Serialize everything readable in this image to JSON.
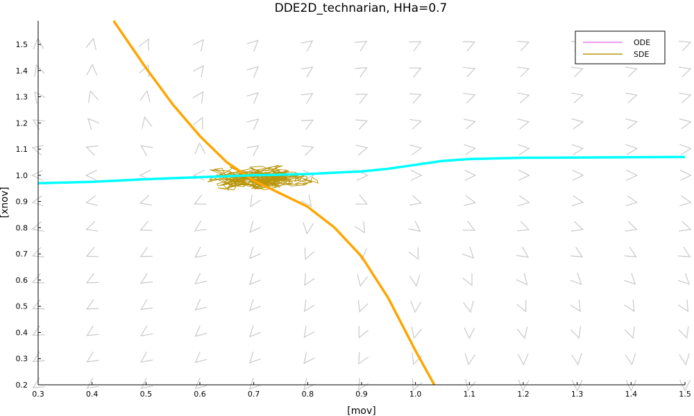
{
  "chart_data": {
    "type": "line",
    "title": "DDE2D_technarian, HHa=0.7",
    "xlabel": "[mov]",
    "ylabel": "[xnov]",
    "xlim": [
      0.3,
      1.5
    ],
    "ylim": [
      0.2,
      1.59
    ],
    "x_ticks": [
      "0.3",
      "0.4",
      "0.5",
      "0.6",
      "0.7",
      "0.8",
      "0.9",
      "1.0",
      "1.1",
      "1.2",
      "1.3",
      "1.4",
      "1.5"
    ],
    "y_ticks": [
      "0.2",
      "0.3",
      "0.4",
      "0.5",
      "0.6",
      "0.7",
      "0.8",
      "0.9",
      "1.0",
      "1.1",
      "1.2",
      "1.3",
      "1.4",
      "1.5"
    ],
    "grid": false,
    "legend_position": "top-right",
    "legend": [
      "ODE",
      "SDE"
    ],
    "colors": {
      "ode": "#e87be8",
      "sde": "#b8960c",
      "nullcline_x": "#ffa500",
      "nullcline_y": "#00ffff",
      "vector_field": "#c8c8c8"
    },
    "series": [
      {
        "name": "ODE",
        "values": []
      },
      {
        "name": "SDE",
        "center": [
          0.7,
          0.99
        ],
        "spread": [
          0.09,
          0.05
        ],
        "x_range": [
          0.61,
          0.93
        ],
        "y_range": [
          0.88,
          1.07
        ]
      }
    ],
    "nullclines": [
      {
        "points": [
          [
            0.44,
            1.59
          ],
          [
            0.5,
            1.41
          ],
          [
            0.55,
            1.27
          ],
          [
            0.6,
            1.15
          ],
          [
            0.65,
            1.05
          ],
          [
            0.7,
            0.98
          ],
          [
            0.75,
            0.93
          ],
          [
            0.8,
            0.88
          ],
          [
            0.85,
            0.8
          ],
          [
            0.9,
            0.69
          ],
          [
            0.95,
            0.53
          ],
          [
            1.0,
            0.33
          ],
          [
            1.035,
            0.2
          ]
        ]
      },
      {
        "points": [
          [
            0.3,
            0.97
          ],
          [
            0.4,
            0.975
          ],
          [
            0.5,
            0.985
          ],
          [
            0.6,
            0.993
          ],
          [
            0.7,
            1.0
          ],
          [
            0.8,
            1.005
          ],
          [
            0.9,
            1.015
          ],
          [
            0.95,
            1.025
          ],
          [
            1.0,
            1.04
          ],
          [
            1.05,
            1.055
          ],
          [
            1.1,
            1.062
          ],
          [
            1.2,
            1.067
          ],
          [
            1.3,
            1.068
          ],
          [
            1.4,
            1.069
          ],
          [
            1.5,
            1.07
          ]
        ]
      }
    ]
  }
}
